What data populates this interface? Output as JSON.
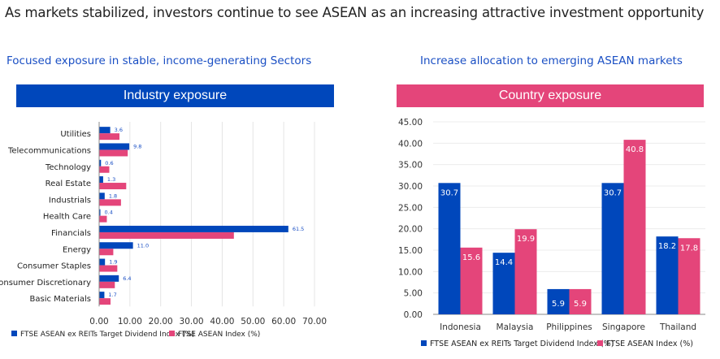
{
  "title": "As markets stabilized, investors continue to see ASEAN as an increasing attractive investment opportunity",
  "left": {
    "subtitle": "Focused exposure in stable, income-generating Sectors",
    "banner": "Industry exposure"
  },
  "right": {
    "subtitle": "Increase allocation to emerging ASEAN markets",
    "banner": "Country exposure"
  },
  "colors": {
    "blue": "#0047BB",
    "pink": "#E4457A",
    "subtitle": "#1A4FC4"
  },
  "chart_data": [
    {
      "type": "bar",
      "orientation": "horizontal",
      "categories": [
        "Utilities",
        "Telecommunications",
        "Technology",
        "Real Estate",
        "Industrials",
        "Health Care",
        "Financials",
        "Energy",
        "Consumer Staples",
        "Consumer Discretionary",
        "Basic Materials"
      ],
      "series": [
        {
          "name": "FTSE ASEAN ex REITs Target Dividend Index (%)",
          "color": "#0047BB",
          "values": [
            3.6,
            9.8,
            0.6,
            1.3,
            1.8,
            0.4,
            61.5,
            11.0,
            1.9,
            6.4,
            1.7
          ],
          "labels": [
            "3.6",
            "9.8",
            "0.6",
            "1.3",
            "1.8",
            "0.4",
            "61.5",
            "11.0",
            "1.9",
            "6.4",
            "1.7"
          ]
        },
        {
          "name": "FTSE ASEAN Index (%)",
          "color": "#E4457A",
          "values": [
            6.6,
            9.3,
            3.3,
            8.8,
            7.1,
            2.5,
            43.8,
            4.6,
            5.9,
            5.1,
            3.7
          ]
        }
      ],
      "xlim": [
        0,
        70
      ],
      "xticks": [
        "0.00",
        "10.00",
        "20.00",
        "30.00",
        "40.00",
        "50.00",
        "60.00",
        "70.00"
      ],
      "grid": true,
      "legend": "bottom"
    },
    {
      "type": "bar",
      "categories": [
        "Indonesia",
        "Malaysia",
        "Philippines",
        "Singapore",
        "Thailand"
      ],
      "series": [
        {
          "name": "FTSE ASEAN ex REITs Target Dividend Index (%)",
          "color": "#0047BB",
          "values": [
            30.7,
            14.4,
            5.9,
            30.7,
            18.2
          ],
          "labels": [
            "30.7",
            "14.4",
            "5.9",
            "30.7",
            "18.2"
          ]
        },
        {
          "name": "FTSE ASEAN Index (%)",
          "color": "#E4457A",
          "values": [
            15.6,
            19.9,
            5.9,
            40.8,
            17.8
          ],
          "labels": [
            "15.6",
            "19.9",
            "5.9",
            "40.8",
            "17.8"
          ]
        }
      ],
      "ylim": [
        0,
        45
      ],
      "yticks": [
        "0.00",
        "5.00",
        "10.00",
        "15.00",
        "20.00",
        "25.00",
        "30.00",
        "35.00",
        "40.00",
        "45.00"
      ],
      "grid": true,
      "legend": "bottom"
    }
  ]
}
